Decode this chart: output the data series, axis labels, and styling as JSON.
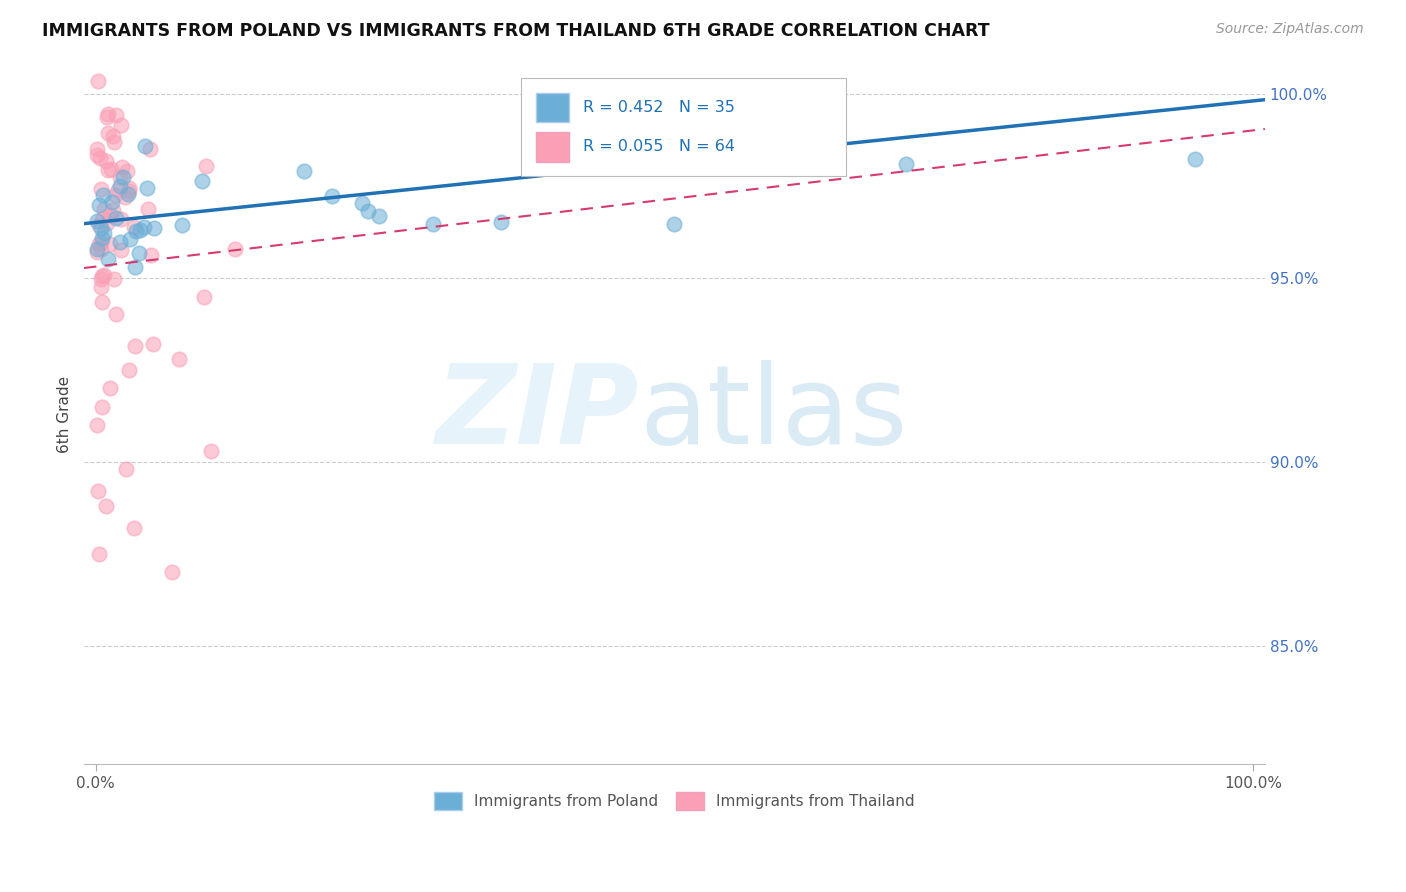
{
  "title": "IMMIGRANTS FROM POLAND VS IMMIGRANTS FROM THAILAND 6TH GRADE CORRELATION CHART",
  "source": "Source: ZipAtlas.com",
  "ylabel": "6th Grade",
  "blue_color": "#6baed6",
  "pink_color": "#fa9fb5",
  "blue_line_color": "#2171b5",
  "pink_line_color": "#d63a6e",
  "bottom_legend_blue": "Immigrants from Poland",
  "bottom_legend_pink": "Immigrants from Thailand",
  "legend_blue_R": "R = 0.452",
  "legend_blue_N": "N = 35",
  "legend_pink_R": "R = 0.055",
  "legend_pink_N": "N = 64",
  "ytick_values": [
    0.85,
    0.9,
    0.95,
    1.0
  ],
  "ytick_labels": [
    "85.0%",
    "90.0%",
    "95.0%",
    "100.0%"
  ],
  "ymin": 0.818,
  "ymax": 1.008,
  "xmin": -0.01,
  "xmax": 1.01,
  "poland_seed": 10,
  "thailand_seed": 20
}
